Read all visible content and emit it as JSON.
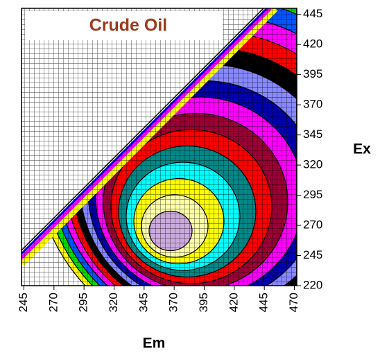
{
  "chart_data": {
    "type": "contour",
    "title": "Crude Oil",
    "x_label": "Em",
    "y_label": "Ex",
    "xlim": [
      243,
      472
    ],
    "ylim": [
      220,
      450
    ],
    "xticks": [
      245,
      270,
      295,
      320,
      345,
      370,
      395,
      420,
      445,
      470
    ],
    "yticks": [
      220,
      245,
      270,
      295,
      320,
      345,
      370,
      395,
      420,
      445
    ],
    "colors": [
      "#ffff00",
      "#00dd00",
      "#0055ff",
      "#ff00ff",
      "#ff0000",
      "#000000",
      "#8888ff",
      "#0000aa",
      "#ff00ff",
      "#990033",
      "#ff0000",
      "#008888",
      "#00ffff",
      "#ffff00",
      "#ffffaa",
      "#ccaadd"
    ]
  }
}
